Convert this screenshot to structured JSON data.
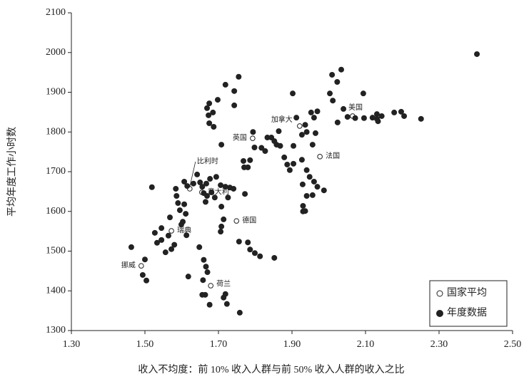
{
  "chart_data": {
    "type": "scatter",
    "xlabel": "收入不均度：前 10% 收入人群与前 50% 收入人群的收入之比",
    "ylabel": "平均年度工作小时数",
    "xlim": [
      1.3,
      2.5
    ],
    "ylim": [
      1300,
      2100
    ],
    "xticks": [
      {
        "value": 1.3,
        "label": "1.30"
      },
      {
        "value": 1.5,
        "label": "1.50"
      },
      {
        "value": 1.7,
        "label": "1.70"
      },
      {
        "value": 1.9,
        "label": "1.90"
      },
      {
        "value": 2.1,
        "label": "2.10"
      },
      {
        "value": 2.3,
        "label": "2.30"
      },
      {
        "value": 2.5,
        "label": "2.50"
      }
    ],
    "yticks": [
      1300,
      1400,
      1500,
      1600,
      1700,
      1800,
      1900,
      2000,
      2100
    ],
    "legend": "lower right",
    "series": [
      {
        "name": "国家平均",
        "color": "#222222",
        "marker": "open",
        "point_labels": [
          "挪威",
          "瑞典",
          "荷兰",
          "德国",
          "意大利",
          "比利时",
          "英国",
          "加拿大",
          "法国",
          "美国"
        ],
        "x": [
          1.49,
          1.572,
          1.679,
          1.749,
          1.655,
          1.622,
          1.793,
          1.921,
          1.976,
          2.065
        ],
        "y": [
          1463,
          1551,
          1413,
          1576,
          1648,
          1657,
          1784,
          1815,
          1738,
          1840
        ]
      },
      {
        "name": "年度数据",
        "color": "#222222",
        "marker": "filled",
        "x": [
          2.403,
          1.463,
          1.5,
          1.494,
          1.504,
          1.519,
          1.527,
          1.533,
          1.545,
          1.556,
          1.564,
          1.572,
          1.58,
          1.584,
          1.586,
          1.59,
          1.595,
          1.568,
          1.603,
          1.607,
          1.615,
          1.607,
          1.611,
          1.613,
          1.599,
          1.545,
          1.632,
          1.642,
          1.656,
          1.667,
          1.677,
          1.681,
          1.694,
          1.706,
          1.719,
          1.731,
          1.741,
          1.726,
          1.665,
          1.69,
          1.772,
          1.708,
          1.669,
          1.65,
          1.66,
          1.648,
          1.66,
          1.666,
          1.67,
          1.658,
          1.656,
          1.664,
          1.676,
          1.618,
          1.714,
          1.719,
          1.723,
          1.758,
          1.714,
          1.708,
          1.706,
          1.756,
          1.78,
          1.786,
          1.799,
          1.813,
          1.852,
          1.675,
          1.669,
          1.685,
          1.673,
          1.675,
          1.687,
          1.698,
          1.719,
          1.743,
          1.755,
          1.743,
          1.708,
          1.768,
          1.78,
          1.77,
          1.786,
          1.794,
          1.798,
          1.817,
          1.827,
          1.833,
          1.844,
          1.852,
          1.858,
          1.868,
          1.864,
          1.879,
          1.887,
          1.894,
          1.904,
          1.904,
          1.912,
          1.902,
          1.927,
          1.936,
          1.94,
          1.952,
          1.96,
          1.969,
          1.964,
          1.956,
          1.927,
          1.929,
          1.94,
          1.948,
          1.96,
          1.969,
          1.987,
          1.94,
          1.956,
          1.93,
          1.936,
          1.93,
          2.009,
          2.034,
          2.023,
          2.003,
          2.011,
          2.094,
          2.04,
          2.024,
          2.051,
          2.072,
          2.096,
          2.119,
          2.131,
          2.144,
          2.134,
          2.178,
          2.197,
          2.205,
          2.251,
          2.131
        ],
        "y": [
          1996,
          1510,
          1479,
          1440,
          1426,
          1661,
          1546,
          1521,
          1528,
          1497,
          1539,
          1505,
          1516,
          1657,
          1639,
          1621,
          1603,
          1585,
          1574,
          1675,
          1664,
          1618,
          1594,
          1540,
          1567,
          1558,
          1670,
          1693,
          1662,
          1670,
          1682,
          1648,
          1687,
          1666,
          1662,
          1660,
          1657,
          1635,
          1624,
          1635,
          1644,
          1612,
          1639,
          1673,
          1646,
          1510,
          1478,
          1461,
          1447,
          1427,
          1390,
          1390,
          1365,
          1436,
          1383,
          1392,
          1367,
          1345,
          1580,
          1562,
          1549,
          1524,
          1522,
          1504,
          1495,
          1487,
          1483,
          1872,
          1860,
          1849,
          1842,
          1822,
          1813,
          1881,
          1919,
          1903,
          1939,
          1867,
          1768,
          1727,
          1711,
          1711,
          1729,
          1800,
          1761,
          1760,
          1752,
          1786,
          1786,
          1777,
          1768,
          1765,
          1802,
          1736,
          1718,
          1704,
          1720,
          1765,
          1836,
          1897,
          1793,
          1818,
          1800,
          1849,
          1836,
          1852,
          1797,
          1768,
          1730,
          1668,
          1704,
          1687,
          1675,
          1662,
          1653,
          1639,
          1641,
          1614,
          1601,
          1600,
          1944,
          1957,
          1926,
          1897,
          1879,
          1897,
          1858,
          1824,
          1838,
          1835,
          1835,
          1836,
          1845,
          1840,
          1827,
          1849,
          1851,
          1840,
          1833,
          1833
        ]
      }
    ]
  }
}
